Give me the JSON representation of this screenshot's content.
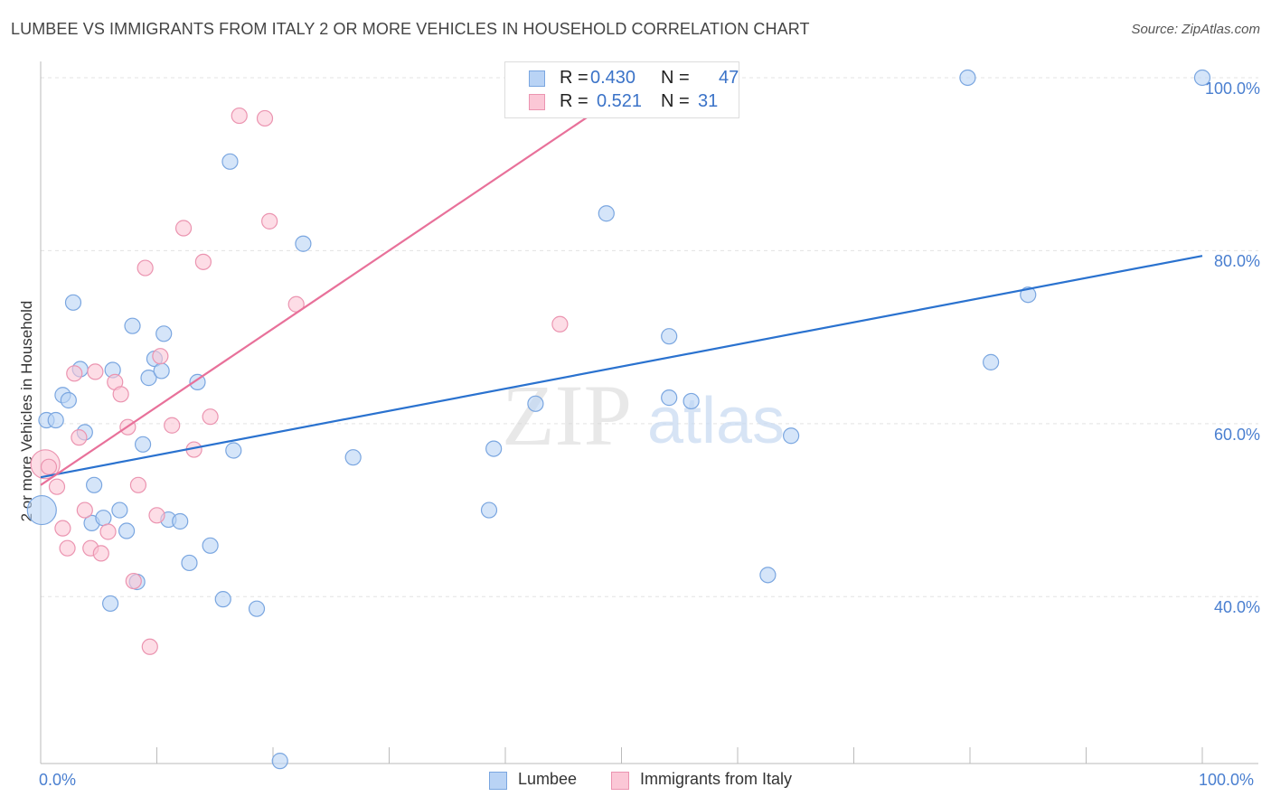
{
  "header": {
    "title": "LUMBEE VS IMMIGRANTS FROM ITALY 2 OR MORE VEHICLES IN HOUSEHOLD CORRELATION CHART",
    "source": "Source: ZipAtlas.com"
  },
  "watermark": {
    "zip": "ZIP",
    "atlas": "atlas"
  },
  "colors": {
    "blue_fill": "#b9d3f5",
    "blue_stroke": "#7aa6e0",
    "blue_line": "#2a72cf",
    "pink_fill": "#fbc7d6",
    "pink_stroke": "#eb94b0",
    "pink_line": "#e8719a",
    "grid": "#e3e3e3",
    "axis_text": "#4a7fd0"
  },
  "legend_top": {
    "rows": [
      {
        "r_label": "R =",
        "r_value": "0.430",
        "n_label": "N =",
        "n_value": "47"
      },
      {
        "r_label": "R =",
        "r_value": "0.521",
        "n_label": "N =",
        "n_value": "31"
      }
    ]
  },
  "legend_bottom": [
    {
      "label": "Lumbee"
    },
    {
      "label": "Immigrants from Italy"
    }
  ],
  "chart_data": {
    "type": "scatter",
    "title": "LUMBEE VS IMMIGRANTS FROM ITALY 2 OR MORE VEHICLES IN HOUSEHOLD CORRELATION CHART",
    "xlabel": "",
    "ylabel": "2 or more Vehicles in Household",
    "xlim": [
      0,
      100
    ],
    "ylim": [
      20.7,
      102.4
    ],
    "x_tick_labels": [
      "0.0%",
      "100.0%"
    ],
    "y_ticks": [
      40,
      60,
      80,
      100
    ],
    "y_tick_labels": [
      "40.0%",
      "60.0%",
      "80.0%",
      "100.0%"
    ],
    "grid": true,
    "series": [
      {
        "name": "Lumbee",
        "R": 0.43,
        "N": 47,
        "trend": {
          "x": [
            0,
            100
          ],
          "y": [
            53.8,
            79.4
          ]
        },
        "points": [
          {
            "x": 0.1,
            "y": 50.0,
            "big": true
          },
          {
            "x": 0.5,
            "y": 60.4
          },
          {
            "x": 1.3,
            "y": 60.4
          },
          {
            "x": 1.9,
            "y": 63.3
          },
          {
            "x": 2.4,
            "y": 62.7
          },
          {
            "x": 2.8,
            "y": 74.0
          },
          {
            "x": 3.4,
            "y": 66.3
          },
          {
            "x": 3.8,
            "y": 59.0
          },
          {
            "x": 4.4,
            "y": 48.5
          },
          {
            "x": 4.6,
            "y": 52.9
          },
          {
            "x": 5.4,
            "y": 49.1
          },
          {
            "x": 6.0,
            "y": 39.2
          },
          {
            "x": 6.2,
            "y": 66.2
          },
          {
            "x": 6.8,
            "y": 50.0
          },
          {
            "x": 7.4,
            "y": 47.6
          },
          {
            "x": 7.9,
            "y": 71.3
          },
          {
            "x": 8.3,
            "y": 41.7
          },
          {
            "x": 8.8,
            "y": 57.6
          },
          {
            "x": 9.3,
            "y": 65.3
          },
          {
            "x": 9.8,
            "y": 67.5
          },
          {
            "x": 10.4,
            "y": 66.1
          },
          {
            "x": 10.6,
            "y": 70.4
          },
          {
            "x": 11.0,
            "y": 48.9
          },
          {
            "x": 12.0,
            "y": 48.7
          },
          {
            "x": 12.8,
            "y": 43.9
          },
          {
            "x": 13.5,
            "y": 64.8
          },
          {
            "x": 14.6,
            "y": 45.9
          },
          {
            "x": 15.7,
            "y": 39.7
          },
          {
            "x": 16.3,
            "y": 90.3
          },
          {
            "x": 16.6,
            "y": 56.9
          },
          {
            "x": 18.6,
            "y": 38.6
          },
          {
            "x": 20.6,
            "y": 21.0
          },
          {
            "x": 22.6,
            "y": 80.8
          },
          {
            "x": 26.9,
            "y": 56.1
          },
          {
            "x": 38.6,
            "y": 50.0
          },
          {
            "x": 39.0,
            "y": 57.1
          },
          {
            "x": 42.6,
            "y": 62.3
          },
          {
            "x": 48.7,
            "y": 84.3
          },
          {
            "x": 54.1,
            "y": 70.1
          },
          {
            "x": 54.1,
            "y": 63.0
          },
          {
            "x": 56.0,
            "y": 62.6
          },
          {
            "x": 62.6,
            "y": 42.5
          },
          {
            "x": 64.6,
            "y": 58.6
          },
          {
            "x": 79.8,
            "y": 100.0
          },
          {
            "x": 81.8,
            "y": 67.1
          },
          {
            "x": 85.0,
            "y": 74.9
          },
          {
            "x": 100.0,
            "y": 100.0
          }
        ]
      },
      {
        "name": "Immigrants from Italy",
        "R": 0.521,
        "N": 31,
        "trend": {
          "x": [
            0,
            50.0
          ],
          "y": [
            52.9,
            98.1
          ]
        },
        "points": [
          {
            "x": 0.4,
            "y": 55.3,
            "big": true
          },
          {
            "x": 0.7,
            "y": 55.0
          },
          {
            "x": 1.4,
            "y": 52.7
          },
          {
            "x": 1.9,
            "y": 47.9
          },
          {
            "x": 2.3,
            "y": 45.6
          },
          {
            "x": 2.9,
            "y": 65.8
          },
          {
            "x": 3.3,
            "y": 58.4
          },
          {
            "x": 3.8,
            "y": 50.0
          },
          {
            "x": 4.3,
            "y": 45.6
          },
          {
            "x": 4.7,
            "y": 66.0
          },
          {
            "x": 5.2,
            "y": 45.0
          },
          {
            "x": 5.8,
            "y": 47.5
          },
          {
            "x": 6.4,
            "y": 64.8
          },
          {
            "x": 6.9,
            "y": 63.4
          },
          {
            "x": 7.5,
            "y": 59.6
          },
          {
            "x": 8.0,
            "y": 41.8
          },
          {
            "x": 8.4,
            "y": 52.9
          },
          {
            "x": 9.0,
            "y": 78.0
          },
          {
            "x": 9.4,
            "y": 34.2
          },
          {
            "x": 10.0,
            "y": 49.4
          },
          {
            "x": 10.3,
            "y": 67.8
          },
          {
            "x": 11.3,
            "y": 59.8
          },
          {
            "x": 12.3,
            "y": 82.6
          },
          {
            "x": 13.2,
            "y": 57.0
          },
          {
            "x": 14.0,
            "y": 78.7
          },
          {
            "x": 14.6,
            "y": 60.8
          },
          {
            "x": 17.1,
            "y": 95.6
          },
          {
            "x": 19.3,
            "y": 95.3
          },
          {
            "x": 19.7,
            "y": 83.4
          },
          {
            "x": 22.0,
            "y": 73.8
          },
          {
            "x": 44.7,
            "y": 71.5
          }
        ]
      }
    ]
  }
}
